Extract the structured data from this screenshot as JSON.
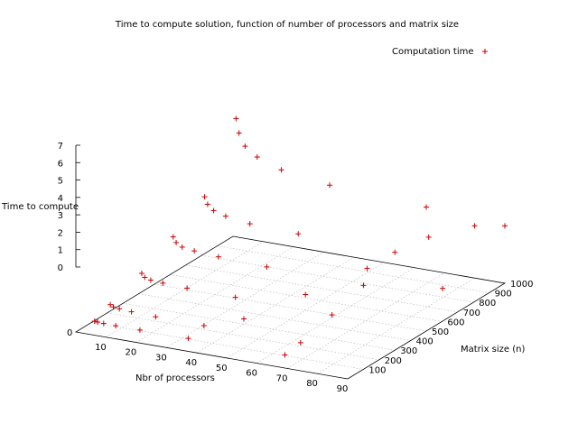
{
  "chart_data": {
    "type": "scatter",
    "title": "Time to compute solution, function of number of processors and matrix size",
    "xlabel": "Nbr of processors",
    "ylabel": "Matrix size (n)",
    "zlabel": "Time to compute",
    "xlim": [
      0,
      90
    ],
    "ylim": [
      0,
      1000
    ],
    "zlim": [
      0,
      7
    ],
    "x_ticks": [
      10,
      20,
      30,
      40,
      50,
      60,
      70,
      80,
      90
    ],
    "y_ticks": [
      100,
      200,
      300,
      400,
      500,
      600,
      700,
      800,
      900,
      1000
    ],
    "z_ticks": [
      0,
      1,
      2,
      3,
      4,
      5,
      6,
      7
    ],
    "grid": true,
    "legend_position": "top-right",
    "series": [
      {
        "name": "Computation time",
        "color": "#cc0000",
        "marker": "plus",
        "points": [
          {
            "x": 1,
            "y": 100,
            "z": 0.1
          },
          {
            "x": 2,
            "y": 100,
            "z": 0.08
          },
          {
            "x": 4,
            "y": 100,
            "z": 0.06
          },
          {
            "x": 8,
            "y": 100,
            "z": 0.05
          },
          {
            "x": 16,
            "y": 100,
            "z": 0.04
          },
          {
            "x": 32,
            "y": 100,
            "z": 0.04
          },
          {
            "x": 64,
            "y": 100,
            "z": 0.05
          },
          {
            "x": 1,
            "y": 200,
            "z": 0.5
          },
          {
            "x": 2,
            "y": 200,
            "z": 0.4
          },
          {
            "x": 4,
            "y": 200,
            "z": 0.35
          },
          {
            "x": 8,
            "y": 200,
            "z": 0.3
          },
          {
            "x": 16,
            "y": 200,
            "z": 0.25
          },
          {
            "x": 32,
            "y": 200,
            "z": 0.22
          },
          {
            "x": 64,
            "y": 200,
            "z": 0.2
          },
          {
            "x": 1,
            "y": 400,
            "z": 1.2
          },
          {
            "x": 2,
            "y": 400,
            "z": 1.0
          },
          {
            "x": 4,
            "y": 400,
            "z": 0.9
          },
          {
            "x": 8,
            "y": 400,
            "z": 0.85
          },
          {
            "x": 16,
            "y": 400,
            "z": 0.8
          },
          {
            "x": 32,
            "y": 400,
            "z": 0.75
          },
          {
            "x": 64,
            "y": 400,
            "z": 0.7
          },
          {
            "x": 1,
            "y": 600,
            "z": 2.2
          },
          {
            "x": 2,
            "y": 600,
            "z": 1.9
          },
          {
            "x": 4,
            "y": 600,
            "z": 1.7
          },
          {
            "x": 8,
            "y": 600,
            "z": 1.6
          },
          {
            "x": 16,
            "y": 600,
            "z": 1.5
          },
          {
            "x": 32,
            "y": 600,
            "z": 1.4
          },
          {
            "x": 64,
            "y": 600,
            "z": 1.3
          },
          {
            "x": 1,
            "y": 800,
            "z": 3.4
          },
          {
            "x": 2,
            "y": 800,
            "z": 3.0
          },
          {
            "x": 4,
            "y": 800,
            "z": 2.7
          },
          {
            "x": 8,
            "y": 800,
            "z": 2.5
          },
          {
            "x": 16,
            "y": 800,
            "z": 2.3
          },
          {
            "x": 32,
            "y": 800,
            "z": 2.2
          },
          {
            "x": 64,
            "y": 800,
            "z": 2.1
          },
          {
            "x": 1,
            "y": 1000,
            "z": 6.8
          },
          {
            "x": 2,
            "y": 1000,
            "z": 6.0
          },
          {
            "x": 4,
            "y": 1000,
            "z": 5.3
          },
          {
            "x": 8,
            "y": 1000,
            "z": 4.8
          },
          {
            "x": 16,
            "y": 1000,
            "z": 4.3
          },
          {
            "x": 32,
            "y": 1000,
            "z": 3.9
          },
          {
            "x": 64,
            "y": 1000,
            "z": 3.6
          },
          {
            "x": 90,
            "y": 1000,
            "z": 3.3
          },
          {
            "x": 40,
            "y": 300,
            "z": 0.3
          },
          {
            "x": 50,
            "y": 500,
            "z": 0.9
          },
          {
            "x": 60,
            "y": 700,
            "z": 1.6
          },
          {
            "x": 70,
            "y": 900,
            "z": 2.6
          },
          {
            "x": 80,
            "y": 1000,
            "z": 3.0
          },
          {
            "x": 85,
            "y": 700,
            "z": 1.2
          }
        ]
      }
    ]
  }
}
